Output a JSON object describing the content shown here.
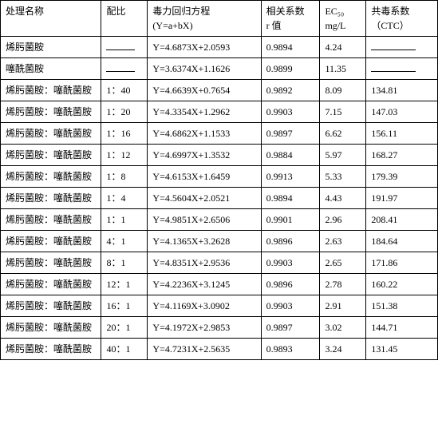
{
  "table": {
    "headers": {
      "name": {
        "l1": "处理名称",
        "l2": ""
      },
      "ratio": {
        "l1": "配比",
        "l2": ""
      },
      "eq": {
        "l1": "毒力回归方程",
        "l2": "(Y=a+bX)"
      },
      "r": {
        "l1": "相关系数",
        "l2": "r 值"
      },
      "ec": {
        "l1": "EC₅₀",
        "l2": "mg/L"
      },
      "ctc": {
        "l1": "共毒系数",
        "l2": "（CTC）"
      }
    },
    "rows": [
      {
        "name": "烯肟菌胺",
        "ratio_blank": true,
        "ratio": "",
        "eq": "Y=4.6873X+2.0593",
        "r": "0.9894",
        "ec": "4.24",
        "ctc_blank": true,
        "ctc": ""
      },
      {
        "name": "噻酰菌胺",
        "ratio_blank": true,
        "ratio": "",
        "eq": "Y=3.6374X+1.1626",
        "r": "0.9899",
        "ec": "11.35",
        "ctc_blank": true,
        "ctc": ""
      },
      {
        "name": "烯肟菌胺：噻酰菌胺",
        "ratio_blank": false,
        "ratio": "1：40",
        "eq": "Y=4.6639X+0.7654",
        "r": "0.9892",
        "ec": "8.09",
        "ctc_blank": false,
        "ctc": "134.81"
      },
      {
        "name": "烯肟菌胺：噻酰菌胺",
        "ratio_blank": false,
        "ratio": "1：20",
        "eq": "Y=4.3354X+1.2962",
        "r": "0.9903",
        "ec": "7.15",
        "ctc_blank": false,
        "ctc": "147.03"
      },
      {
        "name": "烯肟菌胺：噻酰菌胺",
        "ratio_blank": false,
        "ratio": "1：16",
        "eq": "Y=4.6862X+1.1533",
        "r": "0.9897",
        "ec": "6.62",
        "ctc_blank": false,
        "ctc": "156.11"
      },
      {
        "name": "烯肟菌胺：噻酰菌胺",
        "ratio_blank": false,
        "ratio": "1：12",
        "eq": "Y=4.6997X+1.3532",
        "r": "0.9884",
        "ec": "5.97",
        "ctc_blank": false,
        "ctc": "168.27"
      },
      {
        "name": "烯肟菌胺：噻酰菌胺",
        "ratio_blank": false,
        "ratio": "1：8",
        "eq": "Y=4.6153X+1.6459",
        "r": "0.9913",
        "ec": "5.33",
        "ctc_blank": false,
        "ctc": "179.39"
      },
      {
        "name": "烯肟菌胺：噻酰菌胺",
        "ratio_blank": false,
        "ratio": "1：4",
        "eq": "Y=4.5604X+2.0521",
        "r": "0.9894",
        "ec": "4.43",
        "ctc_blank": false,
        "ctc": "191.97"
      },
      {
        "name": "烯肟菌胺：噻酰菌胺",
        "ratio_blank": false,
        "ratio": "1：1",
        "eq": "Y=4.9851X+2.6506",
        "r": "0.9901",
        "ec": "2.96",
        "ctc_blank": false,
        "ctc": "208.41"
      },
      {
        "name": "烯肟菌胺：噻酰菌胺",
        "ratio_blank": false,
        "ratio": "4：1",
        "eq": "Y=4.1365X+3.2628",
        "r": "0.9896",
        "ec": "2.63",
        "ctc_blank": false,
        "ctc": "184.64"
      },
      {
        "name": "烯肟菌胺：噻酰菌胺",
        "ratio_blank": false,
        "ratio": "8：1",
        "eq": "Y=4.8351X+2.9536",
        "r": "0.9903",
        "ec": "2.65",
        "ctc_blank": false,
        "ctc": "171.86"
      },
      {
        "name": "烯肟菌胺：噻酰菌胺",
        "ratio_blank": false,
        "ratio": "12：1",
        "eq": "Y=4.2236X+3.1245",
        "r": "0.9896",
        "ec": "2.78",
        "ctc_blank": false,
        "ctc": "160.22"
      },
      {
        "name": "烯肟菌胺：噻酰菌胺",
        "ratio_blank": false,
        "ratio": "16：1",
        "eq": "Y=4.1169X+3.0902",
        "r": "0.9903",
        "ec": "2.91",
        "ctc_blank": false,
        "ctc": "151.38"
      },
      {
        "name": "烯肟菌胺：噻酰菌胺",
        "ratio_blank": false,
        "ratio": "20：1",
        "eq": "Y=4.1972X+2.9853",
        "r": "0.9897",
        "ec": "3.02",
        "ctc_blank": false,
        "ctc": "144.71"
      },
      {
        "name": "烯肟菌胺：噻酰菌胺",
        "ratio_blank": false,
        "ratio": "40：1",
        "eq": "Y=4.7231X+2.5635",
        "r": "0.9893",
        "ec": "3.24",
        "ctc_blank": false,
        "ctc": "131.45"
      }
    ]
  }
}
